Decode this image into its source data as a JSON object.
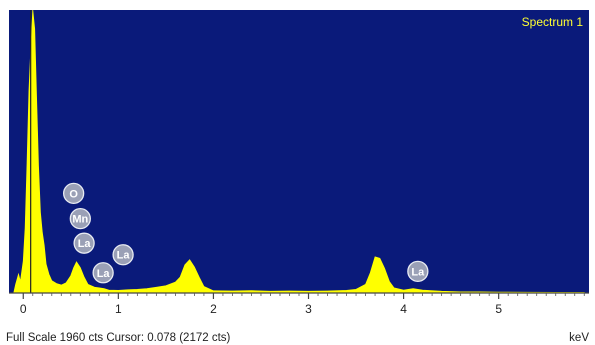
{
  "chart_data": {
    "type": "area",
    "title": "",
    "legend": "Spectrum 1",
    "xlabel": "",
    "ylabel": "",
    "x_unit": "keV",
    "xlim": [
      -0.15,
      5.95
    ],
    "ylim": [
      0,
      1960
    ],
    "x_ticks": [
      0,
      1,
      2,
      3,
      4,
      5
    ],
    "x_tick_labels": [
      "0",
      "1",
      "2",
      "3",
      "4",
      "5"
    ],
    "series": [
      {
        "color": "#ffff00",
        "points": [
          [
            -0.1,
            0
          ],
          [
            -0.08,
            60
          ],
          [
            -0.05,
            130
          ],
          [
            -0.03,
            80
          ],
          [
            0.0,
            220
          ],
          [
            0.02,
            450
          ],
          [
            0.04,
            900
          ],
          [
            0.06,
            1400
          ],
          [
            0.08,
            1700
          ],
          [
            0.1,
            1960
          ],
          [
            0.12,
            1830
          ],
          [
            0.14,
            1350
          ],
          [
            0.16,
            880
          ],
          [
            0.18,
            560
          ],
          [
            0.2,
            420
          ],
          [
            0.22,
            330
          ],
          [
            0.24,
            200
          ],
          [
            0.27,
            130
          ],
          [
            0.3,
            85
          ],
          [
            0.35,
            65
          ],
          [
            0.4,
            55
          ],
          [
            0.45,
            70
          ],
          [
            0.5,
            120
          ],
          [
            0.53,
            175
          ],
          [
            0.56,
            215
          ],
          [
            0.6,
            175
          ],
          [
            0.64,
            110
          ],
          [
            0.68,
            60
          ],
          [
            0.75,
            40
          ],
          [
            0.8,
            35
          ],
          [
            0.85,
            30
          ],
          [
            0.9,
            20
          ],
          [
            1.0,
            18
          ],
          [
            1.1,
            22
          ],
          [
            1.2,
            25
          ],
          [
            1.3,
            30
          ],
          [
            1.4,
            40
          ],
          [
            1.5,
            50
          ],
          [
            1.6,
            75
          ],
          [
            1.65,
            110
          ],
          [
            1.7,
            195
          ],
          [
            1.75,
            230
          ],
          [
            1.8,
            180
          ],
          [
            1.85,
            110
          ],
          [
            1.9,
            45
          ],
          [
            2.0,
            15
          ],
          [
            2.2,
            14
          ],
          [
            2.4,
            16
          ],
          [
            2.6,
            12
          ],
          [
            2.8,
            14
          ],
          [
            3.0,
            12
          ],
          [
            3.2,
            14
          ],
          [
            3.4,
            18
          ],
          [
            3.5,
            25
          ],
          [
            3.6,
            60
          ],
          [
            3.65,
            140
          ],
          [
            3.7,
            250
          ],
          [
            3.75,
            240
          ],
          [
            3.8,
            170
          ],
          [
            3.85,
            80
          ],
          [
            3.9,
            35
          ],
          [
            4.0,
            20
          ],
          [
            4.1,
            30
          ],
          [
            4.2,
            20
          ],
          [
            4.4,
            12
          ],
          [
            4.6,
            8
          ],
          [
            4.8,
            8
          ],
          [
            5.0,
            6
          ],
          [
            5.3,
            5
          ],
          [
            5.6,
            4
          ],
          [
            5.9,
            4
          ]
        ]
      }
    ],
    "marker_line": {
      "x": 0.078,
      "color": "#222222"
    },
    "element_markers": [
      {
        "label": "O",
        "x": 0.53,
        "y": 690
      },
      {
        "label": "Mn",
        "x": 0.6,
        "y": 515
      },
      {
        "label": "La",
        "x": 0.64,
        "y": 345
      },
      {
        "label": "La",
        "x": 0.84,
        "y": 140
      },
      {
        "label": "La",
        "x": 1.05,
        "y": 265
      },
      {
        "label": "La",
        "x": 4.15,
        "y": 150
      }
    ],
    "grid": false,
    "background": "#0a1a7a"
  },
  "footer": {
    "status": "Full Scale 1960 cts Cursor: 0.078  (2172 cts)",
    "unit": "keV"
  },
  "colors": {
    "plot_background": "#0a1a7a",
    "spectrum": "#ffff00",
    "marker_fill": "#9aa0b6",
    "marker_stroke": "#e8ebf2"
  }
}
